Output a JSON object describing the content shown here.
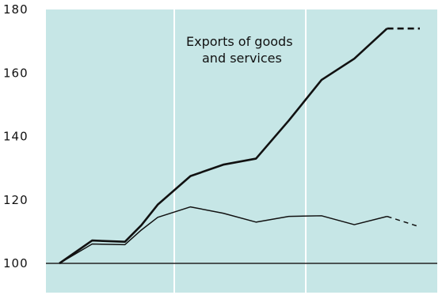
{
  "colors": {
    "background": "#c6e6e6",
    "vertical_band_lines": "#ffffff",
    "baseline": "#222222",
    "series_line": "#111111"
  },
  "chart_data": {
    "type": "line",
    "title": "",
    "xlabel": "",
    "ylabel": "",
    "ylim": [
      100,
      180
    ],
    "y_ticks": [
      "100",
      "120",
      "140",
      "160",
      "180"
    ],
    "grid": false,
    "legend": "none",
    "annotations": [
      {
        "text_lines": [
          "Exports of goods",
          "and services"
        ],
        "refers_to": "Exports of goods and services"
      }
    ],
    "x": [
      0,
      1,
      2,
      2.5,
      3,
      4,
      5,
      6,
      7,
      8,
      9,
      10,
      11
    ],
    "series": [
      {
        "name": "Exports of goods and services",
        "values": [
          100,
          107.2,
          106.8,
          112,
          118.5,
          127.5,
          131.1,
          133,
          145,
          157.8,
          164.5,
          174,
          174
        ],
        "style": "thick",
        "projected_from_x": 10
      },
      {
        "name": "",
        "values": [
          100,
          106.1,
          105.9,
          110.5,
          114.5,
          117.8,
          115.8,
          113,
          114.8,
          115,
          112.2,
          114.8,
          111.5
        ],
        "style": "thin",
        "projected_from_x": 10
      }
    ]
  }
}
